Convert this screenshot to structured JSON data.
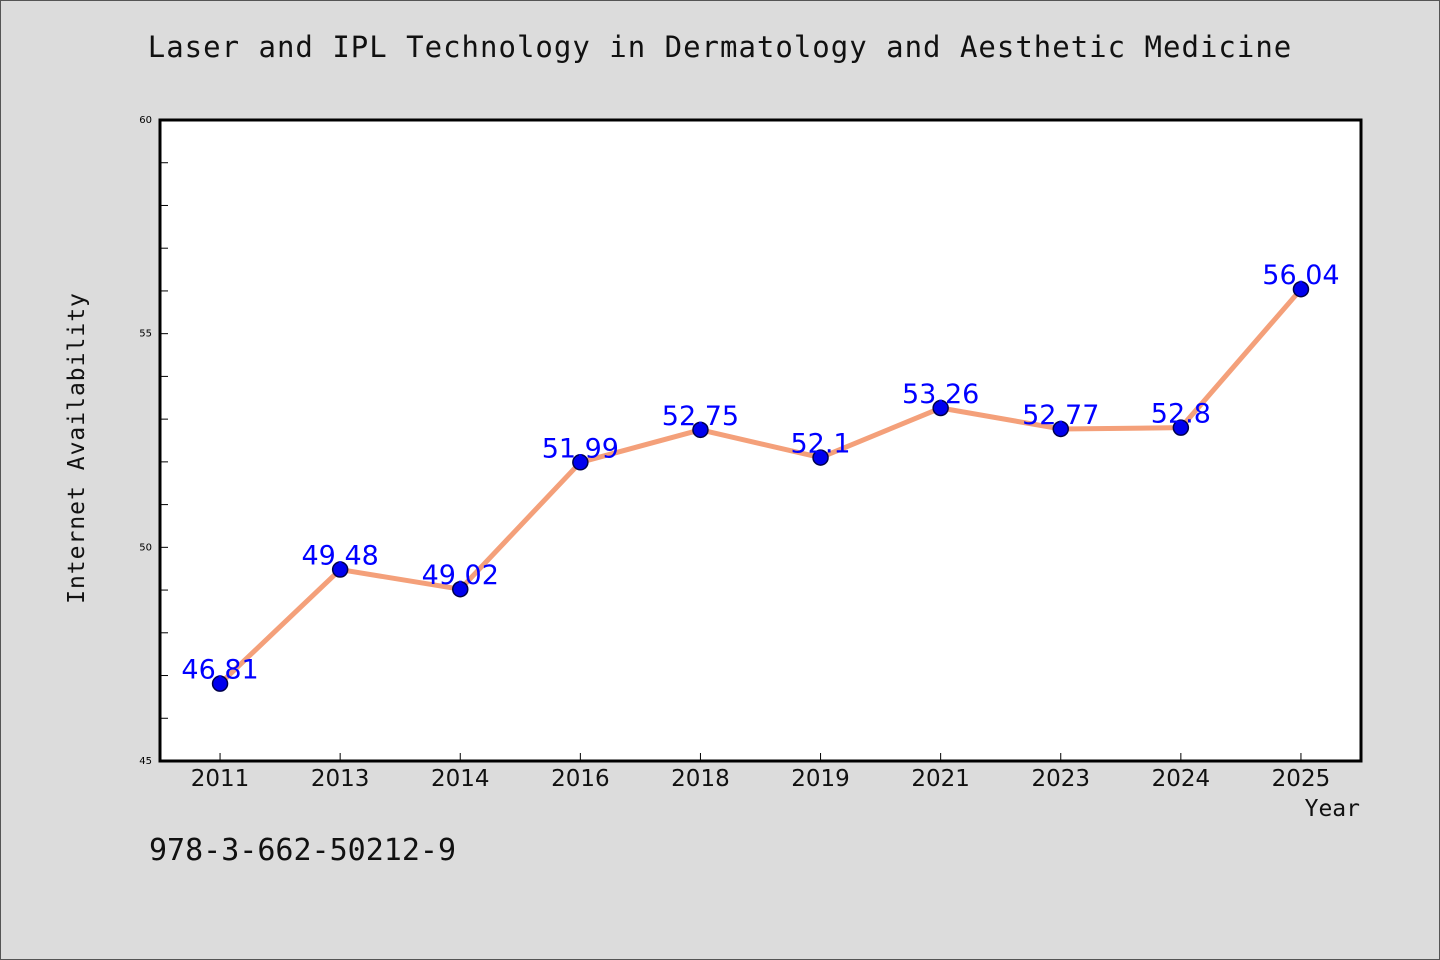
{
  "chart_data": {
    "type": "line",
    "title": "Laser and IPL Technology in Dermatology and Aesthetic Medicine",
    "xlabel": "Year",
    "ylabel": "Internet Availability",
    "categories": [
      "2011",
      "2013",
      "2014",
      "2016",
      "2018",
      "2019",
      "2021",
      "2023",
      "2024",
      "2025"
    ],
    "series": [
      {
        "values": [
          46.81,
          49.48,
          49.02,
          51.99,
          52.75,
          52.1,
          53.26,
          52.77,
          52.8,
          56.04
        ],
        "labels": [
          "46.81",
          "49.48",
          "49.02",
          "51.99",
          "52.75",
          "52.1",
          "53.26",
          "52.77",
          "52.8",
          "56.04"
        ]
      }
    ],
    "ylim": [
      45,
      60
    ],
    "yticks": [
      "45",
      "50",
      "55",
      "60"
    ],
    "grid": false,
    "legend": "none",
    "colors": {
      "line": "#f4a07a",
      "marker": "#0000ee",
      "marker_edge": "#00004a",
      "data_label": "#0000ff",
      "plot_background": "#ffffff",
      "figure_background": "#dcdcdc"
    }
  },
  "footnote": "978-3-662-50212-9"
}
